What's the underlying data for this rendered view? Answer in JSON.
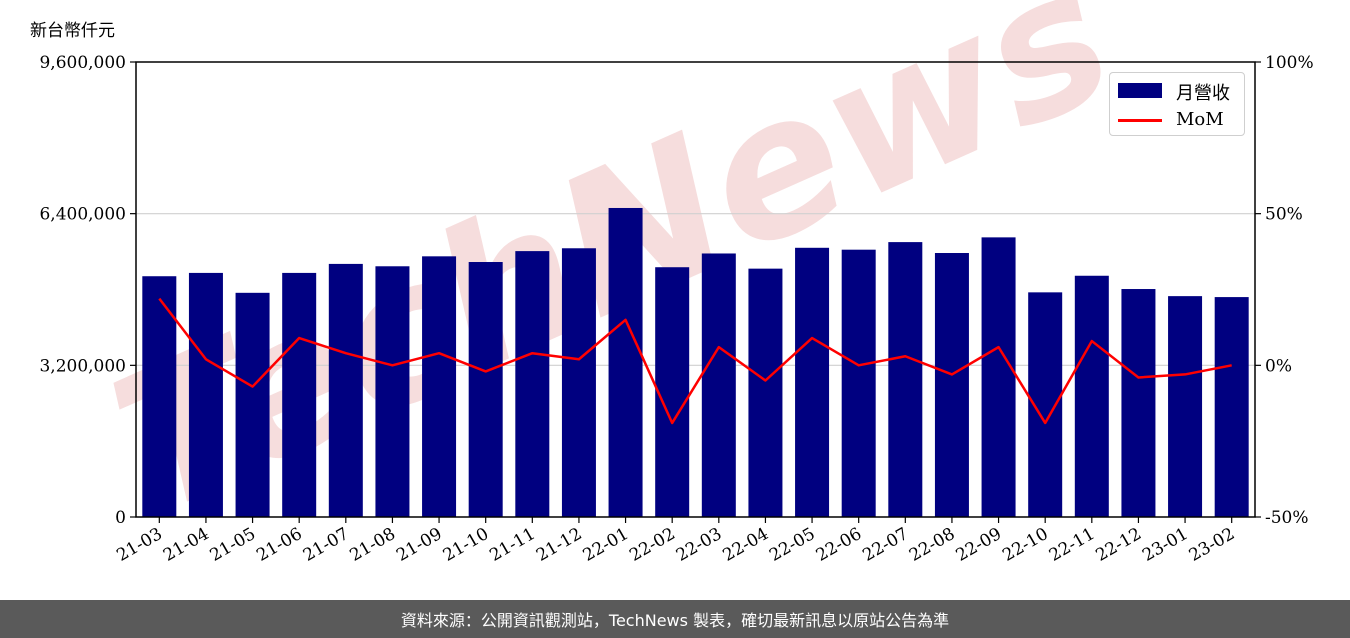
{
  "unit_label": "新台幣仟元",
  "footer_text": "資料來源：公開資訊觀測站，TechNews 製表，確切最新訊息以原站公告為準",
  "watermark": "TechNews",
  "colors": {
    "bar": "#000080",
    "line": "#ff0000",
    "footer_bg": "#5a5a5a",
    "watermark": "#f2c9c9"
  },
  "chart_data": {
    "type": "bar",
    "categories": [
      "21-03",
      "21-04",
      "21-05",
      "21-06",
      "21-07",
      "21-08",
      "21-09",
      "21-10",
      "21-11",
      "21-12",
      "22-01",
      "22-02",
      "22-03",
      "22-04",
      "22-05",
      "22-06",
      "22-07",
      "22-08",
      "22-09",
      "22-10",
      "22-11",
      "22-12",
      "23-01",
      "23-02"
    ],
    "series": [
      {
        "name": "月營收",
        "axis": "left",
        "type": "bar",
        "values": [
          5080000,
          5150000,
          4730000,
          5150000,
          5340000,
          5290000,
          5500000,
          5380000,
          5610000,
          5670000,
          6520000,
          5270000,
          5560000,
          5240000,
          5680000,
          5640000,
          5800000,
          5570000,
          5900000,
          4740000,
          5090000,
          4810000,
          4660000,
          4640000
        ]
      },
      {
        "name": "MoM",
        "axis": "right",
        "type": "line",
        "values": [
          22,
          2,
          -7,
          9,
          4,
          0,
          4,
          -2,
          4,
          2,
          15,
          -19,
          6,
          -5,
          9,
          0,
          3,
          -3,
          6,
          -19,
          8,
          -4,
          -3,
          0
        ]
      }
    ],
    "y_left": {
      "min": 0,
      "max": 9600000,
      "ticks": [
        "0",
        "3,200,000",
        "6,400,000",
        "9,600,000"
      ],
      "tick_values": [
        0,
        3200000,
        6400000,
        9600000
      ]
    },
    "y_right": {
      "min": -50,
      "max": 100,
      "ticks": [
        "-50%",
        "0%",
        "50%",
        "100%"
      ],
      "tick_values": [
        -50,
        0,
        50,
        100
      ]
    },
    "grid": "horizontal",
    "legend_position": "top-right"
  }
}
